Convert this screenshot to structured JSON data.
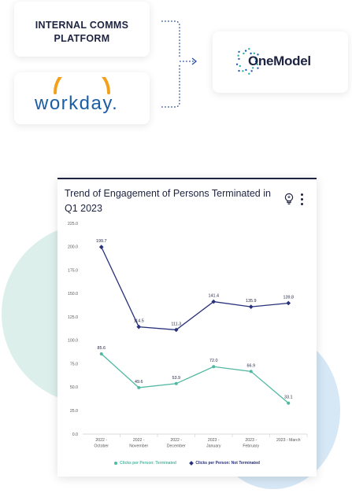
{
  "integration": {
    "source1": "INTERNAL COMMS\nPLATFORM",
    "source2": "workday.",
    "target": "OneModel"
  },
  "chart_card": {
    "title": "Trend of Engagement of Persons Terminated in Q1 2023",
    "icons": [
      "lightbulb-icon",
      "more-vertical-icon"
    ]
  },
  "chart_data": {
    "type": "line",
    "categories": [
      "2022 - October",
      "2022 - November",
      "2022 - December",
      "2023 - January",
      "2023 - February",
      "2023 - March"
    ],
    "tick_labels": [
      [
        "2022 -",
        "October"
      ],
      [
        "2022 -",
        "November"
      ],
      [
        "2022 -",
        "December"
      ],
      [
        "2023 -",
        "January"
      ],
      [
        "2023 -",
        "February"
      ],
      [
        "2023 - March"
      ]
    ],
    "y_ticks": [
      "0.0",
      "25.0",
      "50.0",
      "75.0",
      "100.0",
      "125.0",
      "150.0",
      "175.0",
      "200.0",
      "225.0"
    ],
    "ylim": [
      0,
      225
    ],
    "series": [
      {
        "name": "Clicks per Person: Terminated",
        "values": [
          85.6,
          49.6,
          53.9,
          72.0,
          66.9,
          33.1
        ],
        "labels": [
          "85.6",
          "49.6",
          "53.9",
          "72.0",
          "66.9",
          "33.1"
        ],
        "color": "#4fb8a1",
        "marker": "circle"
      },
      {
        "name": "Clicks per Person: Not Terminated",
        "values": [
          199.7,
          114.5,
          111.3,
          141.4,
          135.9,
          139.8
        ],
        "labels": [
          "199.7",
          "114.5",
          "111.3",
          "141.4",
          "135.9",
          "139.8"
        ],
        "color": "#27307a",
        "marker": "diamond"
      }
    ],
    "grid": false,
    "legend_position": "bottom"
  },
  "colors": {
    "navy": "#1d2340",
    "workday_blue": "#1a5ea8",
    "workday_orange": "#f3a11b",
    "onemodel_teal": "#2bb3a3",
    "onemodel_blue": "#1f5fae",
    "connector": "#2a4fa0"
  }
}
